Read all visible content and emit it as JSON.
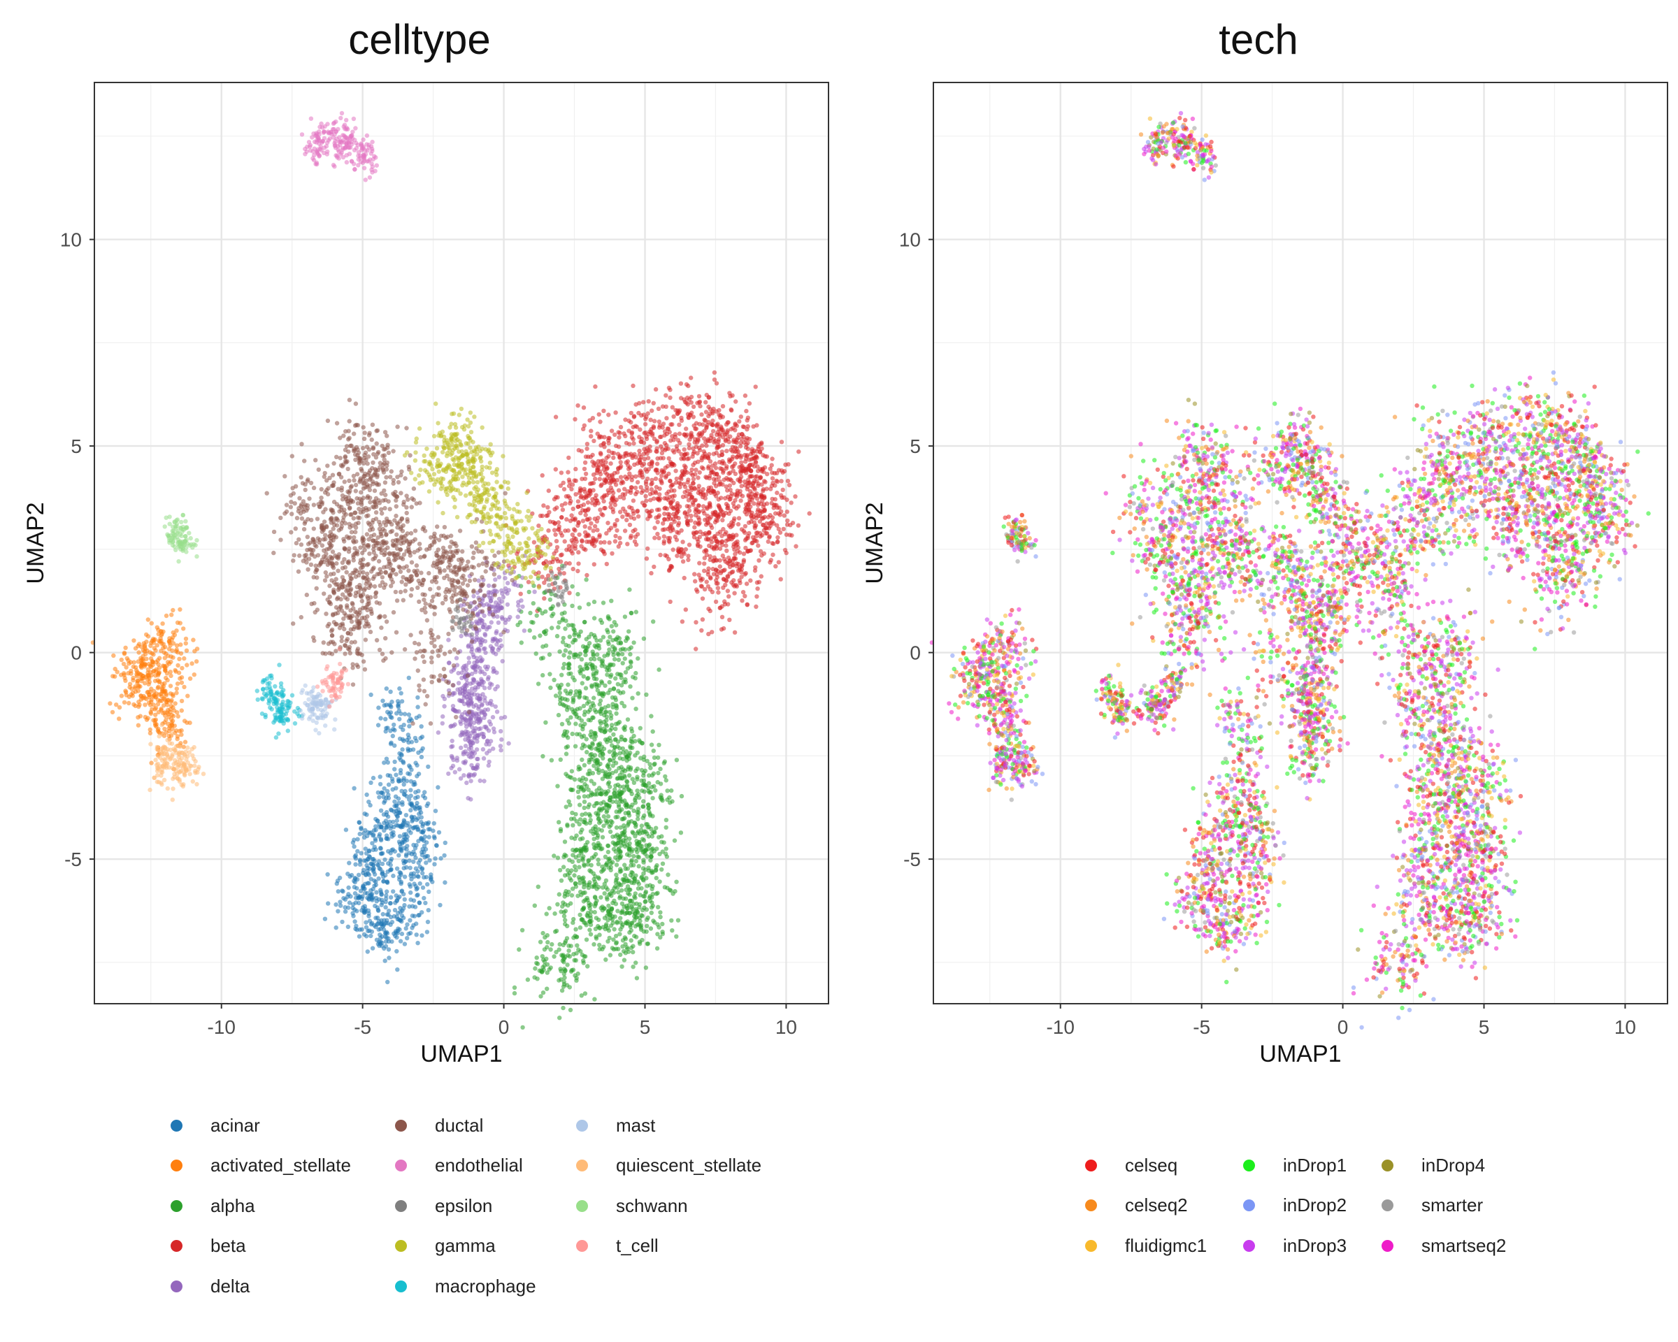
{
  "chart_data": [
    {
      "type": "scatter",
      "title": "celltype",
      "xlabel": "UMAP1",
      "ylabel": "UMAP2",
      "xlim": [
        -14.5,
        11.5
      ],
      "ylim": [
        -8.5,
        13.8
      ],
      "xticks": [
        -10,
        -5,
        0,
        5,
        10
      ],
      "yticks": [
        -5,
        0,
        5,
        10
      ],
      "xtick_labels": [
        "-10",
        "-5",
        "0",
        "5",
        "10"
      ],
      "ytick_labels": [
        "-5",
        "0",
        "5",
        "10"
      ],
      "grid": true,
      "legend_position": "bottom",
      "series": [
        {
          "name": "acinar",
          "color": "#1f77b4"
        },
        {
          "name": "activated_stellate",
          "color": "#ff7f0e"
        },
        {
          "name": "alpha",
          "color": "#2ca02c"
        },
        {
          "name": "beta",
          "color": "#d62728"
        },
        {
          "name": "delta",
          "color": "#9467bd"
        },
        {
          "name": "ductal",
          "color": "#8c564b"
        },
        {
          "name": "endothelial",
          "color": "#e377c2"
        },
        {
          "name": "epsilon",
          "color": "#7f7f7f"
        },
        {
          "name": "gamma",
          "color": "#bcbd22"
        },
        {
          "name": "macrophage",
          "color": "#17becf"
        },
        {
          "name": "mast",
          "color": "#aec7e8"
        },
        {
          "name": "quiescent_stellate",
          "color": "#ffbb78"
        },
        {
          "name": "schwann",
          "color": "#98df8a"
        },
        {
          "name": "t_cell",
          "color": "#ff9896"
        }
      ],
      "clusters": [
        {
          "series": "beta",
          "points": [
            [
              2.5,
              3.6
            ],
            [
              3.5,
              4.3
            ],
            [
              5,
              4.6
            ],
            [
              6.5,
              4.8
            ],
            [
              7.5,
              5
            ],
            [
              8.5,
              4.4
            ],
            [
              9.2,
              3.7
            ],
            [
              9.5,
              3
            ],
            [
              8.5,
              2.7
            ],
            [
              7.5,
              2.4
            ],
            [
              6,
              2.8
            ],
            [
              4.5,
              3.3
            ],
            [
              3,
              3.2
            ],
            [
              5.5,
              5.4
            ],
            [
              7,
              5.6
            ],
            [
              8,
              5.3
            ],
            [
              9,
              4.2
            ],
            [
              8,
              2
            ],
            [
              7.5,
              1.7
            ],
            [
              4,
              4
            ],
            [
              6,
              3.8
            ],
            [
              7.5,
              3.5
            ],
            [
              8.8,
              3.3
            ],
            [
              3.5,
              5
            ],
            [
              5,
              5.2
            ],
            [
              6.5,
              4
            ],
            [
              1.5,
              2.2
            ],
            [
              2.2,
              2.9
            ],
            [
              8.2,
              4.8
            ],
            [
              6.8,
              3.2
            ]
          ]
        },
        {
          "series": "alpha",
          "points": [
            [
              2.8,
              -0.2
            ],
            [
              3.2,
              0.4
            ],
            [
              3.6,
              -1
            ],
            [
              3.8,
              -2
            ],
            [
              4,
              -3
            ],
            [
              4.2,
              -4
            ],
            [
              4.3,
              -5
            ],
            [
              4.5,
              -6
            ],
            [
              3.8,
              -6.6
            ],
            [
              3,
              -6
            ],
            [
              3.2,
              -5
            ],
            [
              3,
              -4
            ],
            [
              3,
              -3
            ],
            [
              2.8,
              -2
            ],
            [
              4.8,
              -2.5
            ],
            [
              5,
              -3.6
            ],
            [
              5.1,
              -5
            ],
            [
              5.3,
              -6.2
            ],
            [
              4.2,
              -6.8
            ],
            [
              2.6,
              -5.5
            ],
            [
              3.5,
              -3.5
            ],
            [
              4.5,
              -4.5
            ],
            [
              4,
              0
            ],
            [
              2.5,
              -1
            ],
            [
              1.5,
              0.8
            ],
            [
              1.9,
              -7.6
            ],
            [
              2.2,
              -7.3
            ]
          ]
        },
        {
          "series": "acinar",
          "points": [
            [
              -3.8,
              -1.5
            ],
            [
              -3.6,
              -2.3
            ],
            [
              -3.8,
              -3.2
            ],
            [
              -4,
              -4
            ],
            [
              -3.5,
              -4.5
            ],
            [
              -3,
              -5
            ],
            [
              -4.3,
              -5
            ],
            [
              -5,
              -5.6
            ],
            [
              -4.6,
              -6.1
            ],
            [
              -3.8,
              -6.5
            ],
            [
              -4.2,
              -6.8
            ],
            [
              -3.2,
              -6
            ],
            [
              -5.5,
              -6
            ],
            [
              -4.8,
              -4.5
            ],
            [
              -3.3,
              -3.8
            ],
            [
              -2.9,
              -4.5
            ],
            [
              -4.5,
              -5.8
            ]
          ]
        },
        {
          "series": "delta",
          "points": [
            [
              -0.5,
              1.2
            ],
            [
              -0.8,
              0.6
            ],
            [
              -1,
              0
            ],
            [
              -1.1,
              -0.8
            ],
            [
              -1.3,
              -1.5
            ],
            [
              -1.2,
              -2.2
            ],
            [
              -1.1,
              -2.6
            ],
            [
              -0.7,
              -1.8
            ],
            [
              -0.4,
              0.4
            ],
            [
              0,
              1.5
            ],
            [
              -1.5,
              -1
            ],
            [
              -0.9,
              -1.2
            ]
          ]
        },
        {
          "series": "ductal",
          "points": [
            [
              -7,
              3.5
            ],
            [
              -6.5,
              2.5
            ],
            [
              -6,
              1.8
            ],
            [
              -5.5,
              1
            ],
            [
              -5,
              0.8
            ],
            [
              -4.8,
              2
            ],
            [
              -4.5,
              3
            ],
            [
              -5,
              4
            ],
            [
              -5.2,
              4.7
            ],
            [
              -4.5,
              4.5
            ],
            [
              -4,
              3.5
            ],
            [
              -3.5,
              2.5
            ],
            [
              -2.8,
              2
            ],
            [
              -2,
              1.8
            ],
            [
              -1.5,
              2.2
            ],
            [
              -6.2,
              3
            ],
            [
              -5.5,
              3.5
            ],
            [
              -4,
              2.2
            ],
            [
              -5.8,
              0.5
            ],
            [
              -1,
              1.5
            ],
            [
              -2.5,
              -0.2
            ]
          ]
        },
        {
          "series": "gamma",
          "points": [
            [
              -2,
              5
            ],
            [
              -1.5,
              4.7
            ],
            [
              -1,
              4.2
            ],
            [
              -0.5,
              3.6
            ],
            [
              0,
              3
            ],
            [
              0.5,
              2.6
            ],
            [
              -1.8,
              4.4
            ],
            [
              -0.8,
              3.8
            ],
            [
              1,
              2.3
            ],
            [
              -2.5,
              4.5
            ],
            [
              -1.2,
              5
            ]
          ]
        },
        {
          "series": "endothelial",
          "points": [
            [
              -6.5,
              12.5
            ],
            [
              -6,
              12.6
            ],
            [
              -5.5,
              12.4
            ],
            [
              -5,
              12.1
            ],
            [
              -4.8,
              11.9
            ],
            [
              -6.7,
              12.1
            ],
            [
              -5.8,
              12.2
            ]
          ]
        },
        {
          "series": "activated_stellate",
          "points": [
            [
              -12.5,
              0
            ],
            [
              -12,
              0.2
            ],
            [
              -11.8,
              -0.5
            ],
            [
              -12.3,
              -1
            ],
            [
              -12.8,
              -0.8
            ],
            [
              -12,
              -1.5
            ],
            [
              -11.8,
              -1.8
            ],
            [
              -13.2,
              -0.6
            ],
            [
              -12.5,
              -0.4
            ]
          ]
        },
        {
          "series": "quiescent_stellate",
          "points": [
            [
              -12,
              -2.3
            ],
            [
              -11.6,
              -2.6
            ],
            [
              -12.2,
              -2.8
            ],
            [
              -11.5,
              -2.9
            ],
            [
              -11.1,
              -2.7
            ]
          ]
        },
        {
          "series": "macrophage",
          "points": [
            [
              -8.3,
              -0.9
            ],
            [
              -8,
              -1.2
            ],
            [
              -7.7,
              -1.4
            ],
            [
              -8.1,
              -1.5
            ]
          ]
        },
        {
          "series": "mast",
          "points": [
            [
              -6.8,
              -1.2
            ],
            [
              -6.5,
              -1.3
            ],
            [
              -6.7,
              -1.4
            ]
          ]
        },
        {
          "series": "t_cell",
          "points": [
            [
              -6.1,
              -0.8
            ],
            [
              -5.9,
              -0.7
            ]
          ]
        },
        {
          "series": "schwann",
          "points": [
            [
              -11.6,
              2.9
            ],
            [
              -11.5,
              2.8
            ],
            [
              -11.4,
              2.7
            ]
          ]
        },
        {
          "series": "epsilon",
          "points": [
            [
              -1.5,
              0.8
            ],
            [
              2,
              1.6
            ]
          ]
        }
      ]
    },
    {
      "type": "scatter",
      "title": "tech",
      "xlabel": "UMAP1",
      "ylabel": "UMAP2",
      "xlim": [
        -14.5,
        11.5
      ],
      "ylim": [
        -8.5,
        13.8
      ],
      "xticks": [
        -10,
        -5,
        0,
        5,
        10
      ],
      "yticks": [
        -5,
        0,
        5,
        10
      ],
      "xtick_labels": [
        "-10",
        "-5",
        "0",
        "5",
        "10"
      ],
      "ytick_labels": [
        "-5",
        "0",
        "5",
        "10"
      ],
      "grid": true,
      "legend_position": "bottom",
      "series": [
        {
          "name": "celseq",
          "color": "#ee1c1c"
        },
        {
          "name": "celseq2",
          "color": "#f78a1d"
        },
        {
          "name": "fluidigmc1",
          "color": "#f8b92c"
        },
        {
          "name": "inDrop1",
          "color": "#1cee1c"
        },
        {
          "name": "inDrop2",
          "color": "#7b96f5"
        },
        {
          "name": "inDrop3",
          "color": "#c83cee"
        },
        {
          "name": "inDrop4",
          "color": "#9a9128"
        },
        {
          "name": "smarter",
          "color": "#9a9a9a"
        },
        {
          "name": "smartseq2",
          "color": "#ee1cc8"
        }
      ]
    }
  ]
}
